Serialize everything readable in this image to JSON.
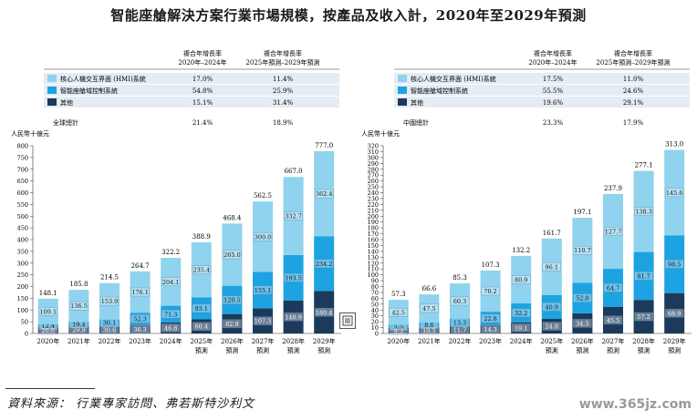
{
  "title": "智能座艙解決方案行業市場規模，按產品及收入計，2020年至2029年預測",
  "source": "資料來源：  行業專家訪問、弗若斯特沙利文",
  "watermark": "www.365jz.com",
  "icons": {
    "expand": "expand-icon"
  },
  "colors": {
    "hmi": "#8fd3ee",
    "domain": "#1ea3e2",
    "other": "#1b3a5c",
    "box": "#e4ecf4"
  },
  "chart_data": [
    {
      "type": "bar",
      "stacked": true,
      "ylabel": "人民幣十億元",
      "ylim": [
        0,
        800
      ],
      "yticks": [
        0,
        50,
        100,
        150,
        200,
        250,
        300,
        350,
        400,
        450,
        500,
        550,
        600,
        650,
        700,
        750,
        800
      ],
      "categories": [
        [
          "2020年"
        ],
        [
          "2021年"
        ],
        [
          "2022年"
        ],
        [
          "2023年"
        ],
        [
          "2024年"
        ],
        [
          "2025年",
          "預測"
        ],
        [
          "2026年",
          "預測"
        ],
        [
          "2027年",
          "預測"
        ],
        [
          "2028年",
          "預測"
        ],
        [
          "2029年",
          "預測"
        ]
      ],
      "series": [
        {
          "name": "其他",
          "color": "#1b3a5c",
          "values": [
            26.6,
            29.9,
            30.6,
            36.3,
            46.8,
            60.4,
            82.9,
            107.3,
            140.9,
            180.4
          ]
        },
        {
          "name": "智能座艙域控制系統",
          "color": "#1ea3e2",
          "values": [
            12.4,
            19.4,
            30.1,
            52.3,
            71.3,
            93.1,
            120.5,
            155.1,
            193.5,
            234.2
          ]
        },
        {
          "name": "核心人機交互界面 (HMI)系統",
          "color": "#8fd3ee",
          "values": [
            109.1,
            136.5,
            153.9,
            176.1,
            204.1,
            235.4,
            265.0,
            300.0,
            332.7,
            362.4
          ]
        }
      ],
      "totals": [
        148.1,
        185.8,
        214.5,
        264.7,
        322.2,
        388.9,
        468.4,
        562.5,
        667.0,
        777.0
      ],
      "cagr_table": {
        "headers": [
          "複合年增長率\n2020年–2024年",
          "複合年增長率\n2025年預測–2029年預測"
        ],
        "rows": [
          {
            "label": "核心人機交互界面 (HMI)系統",
            "swatch": "#8fd3ee",
            "values": [
              "17.0%",
              "11.4%"
            ]
          },
          {
            "label": "智能座艙域控制系統",
            "swatch": "#1ea3e2",
            "values": [
              "54.8%",
              "25.9%"
            ]
          },
          {
            "label": "其他",
            "swatch": "#1b3a5c",
            "values": [
              "15.1%",
              "31.4%"
            ]
          }
        ],
        "total_row": {
          "label": "全球總計",
          "values": [
            "21.4%",
            "18.9%"
          ]
        }
      }
    },
    {
      "type": "bar",
      "stacked": true,
      "ylabel": "人民幣十億元",
      "ylim": [
        0,
        320
      ],
      "yticks": [
        0,
        10,
        20,
        30,
        40,
        50,
        60,
        70,
        80,
        90,
        100,
        110,
        120,
        130,
        140,
        150,
        160,
        170,
        180,
        190,
        200,
        210,
        220,
        230,
        240,
        250,
        260,
        270,
        280,
        290,
        300,
        310,
        320
      ],
      "categories": [
        [
          "2020年"
        ],
        [
          "2021年"
        ],
        [
          "2022年"
        ],
        [
          "2023年"
        ],
        [
          "2024年"
        ],
        [
          "2025年",
          "預測"
        ],
        [
          "2026年",
          "預測"
        ],
        [
          "2027年",
          "預測"
        ],
        [
          "2028年",
          "預測"
        ],
        [
          "2029年",
          "預測"
        ]
      ],
      "series": [
        {
          "name": "其他",
          "color": "#1b3a5c",
          "values": [
            9.3,
            10.5,
            11.7,
            14.3,
            19.1,
            24.8,
            34.5,
            45.5,
            57.2,
            68.9
          ]
        },
        {
          "name": "智能座艙域控制系統",
          "color": "#1ea3e2",
          "values": [
            5.5,
            8.6,
            13.3,
            22.8,
            32.2,
            40.9,
            52.0,
            64.7,
            81.7,
            98.5
          ]
        },
        {
          "name": "核心人機交互界面 (HMI)系統",
          "color": "#8fd3ee",
          "values": [
            42.5,
            47.5,
            60.3,
            70.2,
            80.9,
            96.1,
            110.7,
            127.7,
            138.3,
            145.6
          ]
        }
      ],
      "totals": [
        57.3,
        66.6,
        85.3,
        107.3,
        132.2,
        161.7,
        197.1,
        237.9,
        277.1,
        313.0
      ],
      "cagr_table": {
        "headers": [
          "複合年增長率\n2020年–2024年",
          "複合年增長率\n2025年預測–2029年預測"
        ],
        "rows": [
          {
            "label": "核心人機交互界面 (HMI)系統",
            "swatch": "#8fd3ee",
            "values": [
              "17.5%",
              "11.0%"
            ]
          },
          {
            "label": "智能座艙域控制系統",
            "swatch": "#1ea3e2",
            "values": [
              "55.5%",
              "24.6%"
            ]
          },
          {
            "label": "其他",
            "swatch": "#1b3a5c",
            "values": [
              "19.6%",
              "29.1%"
            ]
          }
        ],
        "total_row": {
          "label": "中國總計",
          "values": [
            "23.3%",
            "17.9%"
          ]
        }
      }
    }
  ]
}
